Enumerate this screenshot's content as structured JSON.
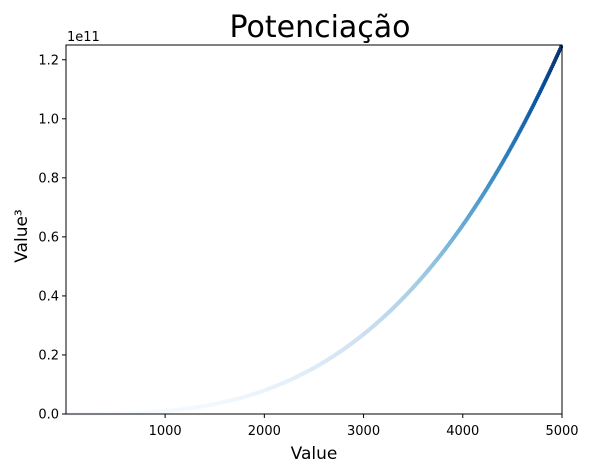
{
  "chart_data": {
    "type": "scatter",
    "title": "Potenciação",
    "xlabel": "Value",
    "ylabel": "Value³",
    "xlim": [
      1,
      5000
    ],
    "ylim": [
      0,
      125000000000
    ],
    "x_ticks": [
      1000,
      2000,
      3000,
      4000,
      5000
    ],
    "x_tick_labels": [
      "1000",
      "2000",
      "3000",
      "4000",
      "5000"
    ],
    "y_ticks": [
      0,
      20000000000,
      40000000000,
      60000000000,
      80000000000,
      100000000000,
      120000000000
    ],
    "y_tick_labels": [
      "0.0",
      "0.2",
      "0.4",
      "0.6",
      "0.8",
      "1.0",
      "1.2"
    ],
    "y_offset_text": "1e11",
    "function": "y = x^3",
    "x_range": [
      1,
      5000
    ],
    "colormap": "Blues",
    "grid": false,
    "series": [
      {
        "x": [
          1,
          500,
          1000,
          1500,
          2000,
          2500,
          3000,
          3500,
          4000,
          4500,
          5000
        ],
        "y": [
          1,
          125000000,
          1000000000,
          3375000000,
          8000000000,
          15625000000,
          27000000000,
          42875000000,
          64000000000,
          91125000000,
          125000000000
        ]
      }
    ]
  }
}
